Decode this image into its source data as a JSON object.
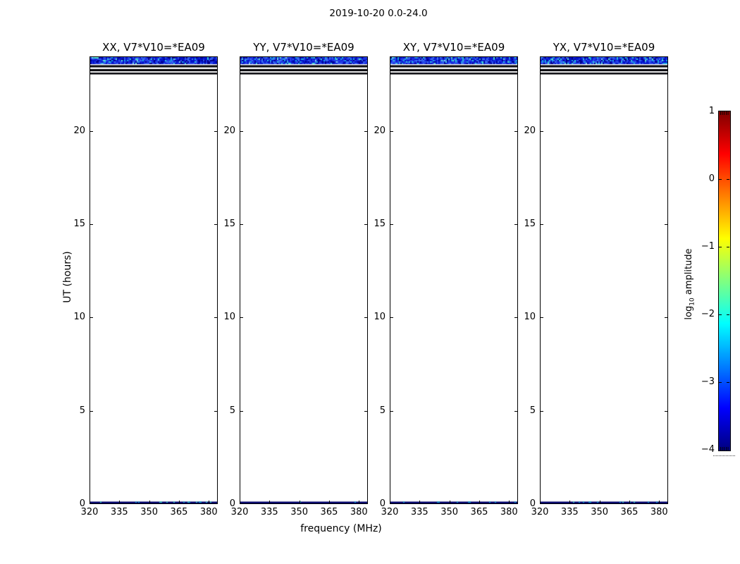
{
  "chart_data": {
    "type": "heatmap",
    "title": "2019-10-20 0.0-24.0",
    "xlabel": "frequency (MHz)",
    "ylabel": "UT (hours)",
    "xlim": [
      320,
      384.5
    ],
    "ylim": [
      0,
      24
    ],
    "x_ticks": [
      320,
      335,
      350,
      365,
      380
    ],
    "y_ticks": [
      0,
      5,
      10,
      15,
      20
    ],
    "grid": false,
    "panels": [
      {
        "title": "XX, V7*V10=*EA09",
        "polarization": "XX"
      },
      {
        "title": "YY, V7*V10=*EA09",
        "polarization": "YY"
      },
      {
        "title": "XY, V7*V10=*EA09",
        "polarization": "XY"
      },
      {
        "title": "YX, V7*V10=*EA09",
        "polarization": "YX"
      }
    ],
    "features": {
      "emission_band": {
        "ut_range": [
          23.6,
          24.0
        ],
        "freq_range": [
          320,
          384.5
        ],
        "description": "speckled blue/cyan band in all four panels, log10 amplitude about -4 to -2.5"
      },
      "dark_rows_ut": [
        23.45,
        23.25,
        23.05
      ],
      "bottom_row": {
        "ut_range": [
          0,
          0.1
        ],
        "description": "thin dark navy row with sparse cyan flecks in all four panels"
      },
      "elsewhere": "blank (no data) between UT 0.1 and 23.0"
    },
    "colorbar": {
      "label": {
        "prefix": "log",
        "sub": "10",
        "suffix": " amplitude"
      },
      "tick_labels": [
        "1",
        "0",
        "−1",
        "−2",
        "−3",
        "−4"
      ],
      "range": [
        -4,
        1
      ],
      "colormap": "jet",
      "colormap_stops": [
        {
          "pos": 0.0,
          "color": "#7f0000"
        },
        {
          "pos": 0.125,
          "color": "#ff0000"
        },
        {
          "pos": 0.375,
          "color": "#ffff00"
        },
        {
          "pos": 0.625,
          "color": "#00ffff"
        },
        {
          "pos": 0.875,
          "color": "#0000ff"
        },
        {
          "pos": 1.0,
          "color": "#00007f"
        }
      ]
    },
    "speckle_palette": [
      "#00008c",
      "#0113c8",
      "#1527dd",
      "#2440e8",
      "#2e57ee",
      "#3b76f2",
      "#18a8e0",
      "#2fc9de",
      "#57e0d0",
      "#7fd4f0"
    ],
    "bottom_row_palette": {
      "base": "#000068",
      "fleck1": "#0aa8cc",
      "fleck2": "#35d2c0"
    }
  }
}
